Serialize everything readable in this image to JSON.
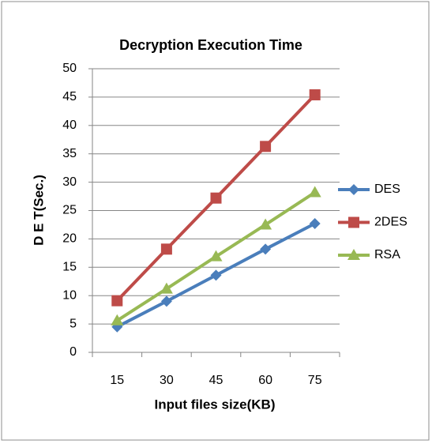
{
  "chart_data": {
    "type": "line",
    "title": "Decryption Execution Time",
    "x_label": "Input files size(KB)",
    "y_label": "D E T(Sec.)",
    "categories": [
      "15",
      "30",
      "45",
      "60",
      "75"
    ],
    "series": [
      {
        "name": "DES",
        "color": "#4a7ebb",
        "marker": "diamond",
        "values": [
          4.5,
          9.0,
          13.6,
          18.2,
          22.7
        ]
      },
      {
        "name": "2DES",
        "color": "#be4b48",
        "marker": "square",
        "values": [
          9.1,
          18.2,
          27.2,
          36.3,
          45.4
        ]
      },
      {
        "name": "RSA",
        "color": "#98b954",
        "marker": "triangle",
        "values": [
          5.6,
          11.2,
          16.9,
          22.5,
          28.2
        ]
      }
    ],
    "ylim": [
      0,
      50
    ],
    "yticks": [
      0,
      5,
      10,
      15,
      20,
      25,
      30,
      35,
      40,
      45,
      50
    ],
    "grid": true,
    "legend": "right"
  }
}
